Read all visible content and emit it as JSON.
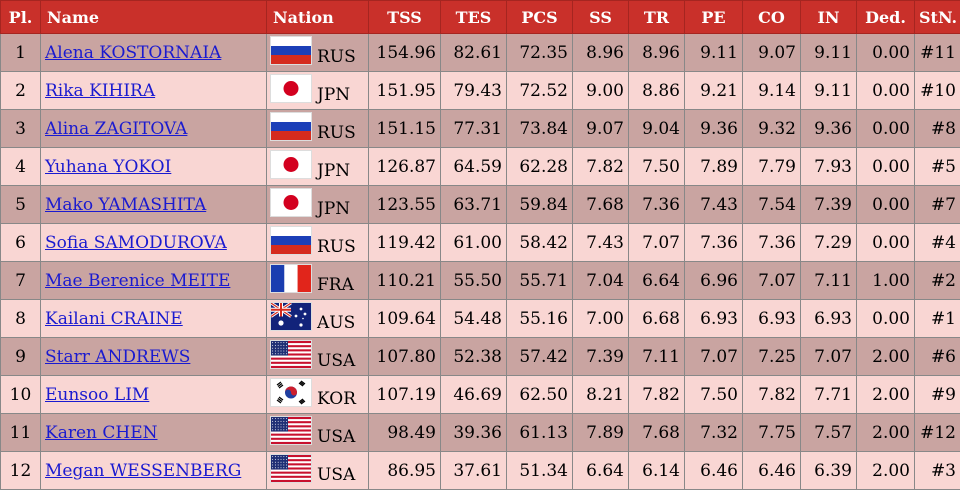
{
  "headers": {
    "pl": "Pl.",
    "name": "Name",
    "nation": "Nation",
    "tss": "TSS",
    "tes": "TES",
    "pcs": "PCS",
    "ss": "SS",
    "tr": "TR",
    "pe": "PE",
    "co": "CO",
    "in": "IN",
    "ded": "Ded.",
    "stn": "StN."
  },
  "rows": [
    {
      "pl": "1",
      "name": "Alena KOSTORNAIA",
      "flag": "russia-flag-icon",
      "nation": "RUS",
      "tss": "154.96",
      "tes": "82.61",
      "pcs": "72.35",
      "ss": "8.96",
      "tr": "8.96",
      "pe": "9.11",
      "co": "9.07",
      "in": "9.11",
      "ded": "0.00",
      "stn": "#11"
    },
    {
      "pl": "2",
      "name": "Rika KIHIRA",
      "flag": "japan-flag-icon",
      "nation": "JPN",
      "tss": "151.95",
      "tes": "79.43",
      "pcs": "72.52",
      "ss": "9.00",
      "tr": "8.86",
      "pe": "9.21",
      "co": "9.14",
      "in": "9.11",
      "ded": "0.00",
      "stn": "#10"
    },
    {
      "pl": "3",
      "name": "Alina ZAGITOVA",
      "flag": "russia-flag-icon",
      "nation": "RUS",
      "tss": "151.15",
      "tes": "77.31",
      "pcs": "73.84",
      "ss": "9.07",
      "tr": "9.04",
      "pe": "9.36",
      "co": "9.32",
      "in": "9.36",
      "ded": "0.00",
      "stn": "#8"
    },
    {
      "pl": "4",
      "name": "Yuhana YOKOI",
      "flag": "japan-flag-icon",
      "nation": "JPN",
      "tss": "126.87",
      "tes": "64.59",
      "pcs": "62.28",
      "ss": "7.82",
      "tr": "7.50",
      "pe": "7.89",
      "co": "7.79",
      "in": "7.93",
      "ded": "0.00",
      "stn": "#5"
    },
    {
      "pl": "5",
      "name": "Mako YAMASHITA",
      "flag": "japan-flag-icon",
      "nation": "JPN",
      "tss": "123.55",
      "tes": "63.71",
      "pcs": "59.84",
      "ss": "7.68",
      "tr": "7.36",
      "pe": "7.43",
      "co": "7.54",
      "in": "7.39",
      "ded": "0.00",
      "stn": "#7"
    },
    {
      "pl": "6",
      "name": "Sofia SAMODUROVA",
      "flag": "russia-flag-icon",
      "nation": "RUS",
      "tss": "119.42",
      "tes": "61.00",
      "pcs": "58.42",
      "ss": "7.43",
      "tr": "7.07",
      "pe": "7.36",
      "co": "7.36",
      "in": "7.29",
      "ded": "0.00",
      "stn": "#4"
    },
    {
      "pl": "7",
      "name": "Mae Berenice MEITE",
      "flag": "france-flag-icon",
      "nation": "FRA",
      "tss": "110.21",
      "tes": "55.50",
      "pcs": "55.71",
      "ss": "7.04",
      "tr": "6.64",
      "pe": "6.96",
      "co": "7.07",
      "in": "7.11",
      "ded": "1.00",
      "stn": "#2"
    },
    {
      "pl": "8",
      "name": "Kailani CRAINE",
      "flag": "australia-flag-icon",
      "nation": "AUS",
      "tss": "109.64",
      "tes": "54.48",
      "pcs": "55.16",
      "ss": "7.00",
      "tr": "6.68",
      "pe": "6.93",
      "co": "6.93",
      "in": "6.93",
      "ded": "0.00",
      "stn": "#1"
    },
    {
      "pl": "9",
      "name": "Starr ANDREWS",
      "flag": "usa-flag-icon",
      "nation": "USA",
      "tss": "107.80",
      "tes": "52.38",
      "pcs": "57.42",
      "ss": "7.39",
      "tr": "7.11",
      "pe": "7.07",
      "co": "7.25",
      "in": "7.07",
      "ded": "2.00",
      "stn": "#6"
    },
    {
      "pl": "10",
      "name": "Eunsoo LIM",
      "flag": "korea-flag-icon",
      "nation": "KOR",
      "tss": "107.19",
      "tes": "46.69",
      "pcs": "62.50",
      "ss": "8.21",
      "tr": "7.82",
      "pe": "7.50",
      "co": "7.82",
      "in": "7.71",
      "ded": "2.00",
      "stn": "#9"
    },
    {
      "pl": "11",
      "name": "Karen CHEN",
      "flag": "usa-flag-icon",
      "nation": "USA",
      "tss": "98.49",
      "tes": "39.36",
      "pcs": "61.13",
      "ss": "7.89",
      "tr": "7.68",
      "pe": "7.32",
      "co": "7.75",
      "in": "7.57",
      "ded": "2.00",
      "stn": "#12"
    },
    {
      "pl": "12",
      "name": "Megan WESSENBERG",
      "flag": "usa-flag-icon",
      "nation": "USA",
      "tss": "86.95",
      "tes": "37.61",
      "pcs": "51.34",
      "ss": "6.64",
      "tr": "6.14",
      "pe": "6.46",
      "co": "6.46",
      "in": "6.39",
      "ded": "2.00",
      "stn": "#3"
    }
  ],
  "colors": {
    "header_bg": "#c9302a",
    "row_odd_bg": "#c9a4a1",
    "row_even_bg": "#f9d6d3",
    "link": "#1a1ad0"
  }
}
